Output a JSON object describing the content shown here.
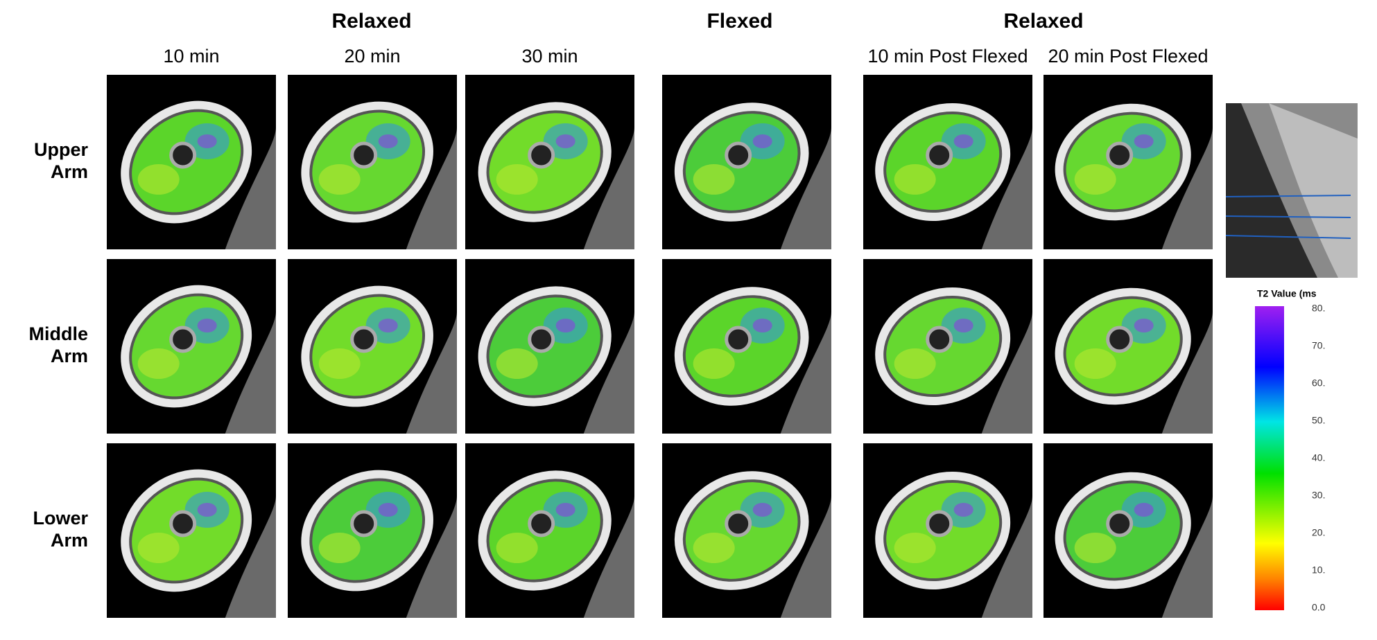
{
  "group_headers": [
    "Relaxed",
    "Flexed",
    "Relaxed"
  ],
  "columns": [
    "10 min",
    "20 min",
    "30 min",
    "10 min Post Flexed",
    "20 min Post Flexed"
  ],
  "rows": [
    "Upper\nArm",
    "Middle\nArm",
    "Lower\nArm"
  ],
  "colorbar": {
    "title": "T2 Value (ms",
    "ticks": [
      "80.",
      "70.",
      "60.",
      "50.",
      "40.",
      "30.",
      "20.",
      "10.",
      "0.0"
    ]
  }
}
